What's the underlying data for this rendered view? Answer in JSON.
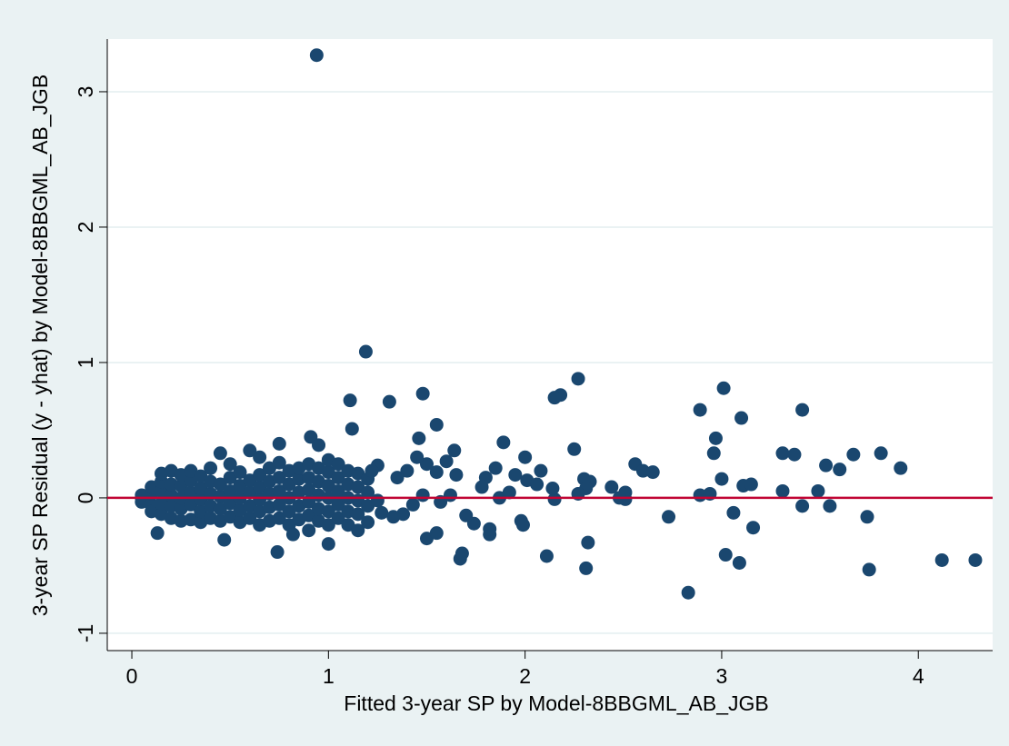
{
  "chart_data": {
    "type": "scatter",
    "xlabel": "Fitted 3-year SP by Model-8BBGML_AB_JGB",
    "ylabel": "3-year SP Residual (y - yhat) by Model-8BBGML_AB_JGB",
    "x": [
      0.05,
      0.05,
      0.05,
      0.1,
      0.1,
      0.1,
      0.1,
      0.15,
      0.15,
      0.15,
      0.15,
      0.15,
      0.2,
      0.2,
      0.2,
      0.2,
      0.2,
      0.25,
      0.25,
      0.25,
      0.25,
      0.25,
      0.3,
      0.3,
      0.3,
      0.3,
      0.3,
      0.35,
      0.35,
      0.35,
      0.35,
      0.35,
      0.4,
      0.4,
      0.4,
      0.4,
      0.4,
      0.45,
      0.45,
      0.45,
      0.45,
      0.45,
      0.5,
      0.5,
      0.5,
      0.5,
      0.5,
      0.55,
      0.55,
      0.55,
      0.55,
      0.55,
      0.6,
      0.6,
      0.6,
      0.6,
      0.6,
      0.65,
      0.65,
      0.65,
      0.65,
      0.65,
      0.65,
      0.7,
      0.7,
      0.7,
      0.7,
      0.7,
      0.75,
      0.75,
      0.75,
      0.75,
      0.75,
      0.8,
      0.8,
      0.8,
      0.8,
      0.8,
      0.85,
      0.85,
      0.85,
      0.85,
      0.85,
      0.9,
      0.9,
      0.9,
      0.9,
      0.9,
      0.95,
      0.95,
      0.95,
      0.95,
      0.95,
      1.0,
      1.0,
      1.0,
      1.0,
      1.0,
      1.0,
      1.05,
      1.05,
      1.05,
      1.05,
      1.05,
      1.1,
      1.1,
      1.1,
      1.1,
      1.1,
      1.15,
      1.15,
      1.15,
      1.15,
      1.2,
      1.2,
      1.2,
      0.94,
      1.19,
      2.27,
      2.18,
      2.15,
      1.48,
      1.11,
      1.31,
      3.01,
      3.41,
      2.89,
      3.1,
      1.12,
      1.55,
      0.91,
      1.46,
      2.97,
      1.89,
      0.95,
      2.25,
      1.64,
      0.75,
      3.81,
      3.67,
      3.37,
      3.31,
      2.96,
      3.91,
      3.53,
      3.6,
      2.56,
      2.6,
      2.65,
      3.0,
      3.11,
      3.15,
      3.31,
      3.49,
      2.89,
      2.94,
      2.51,
      2.51,
      2.44,
      2.33,
      2.3,
      2.31,
      2.27,
      3.41,
      3.55,
      3.06,
      2.73,
      3.16,
      3.74,
      4.12,
      4.29,
      3.75,
      3.02,
      3.09,
      2.83,
      2.31,
      2.32,
      2.11,
      1.67,
      1.68,
      1.82,
      1.82,
      1.98,
      1.99,
      1.74,
      1.7,
      1.5,
      1.55,
      1.27,
      1.0,
      0.74,
      0.47,
      0.13,
      0.82,
      0.9,
      1.15,
      1.2,
      2.15,
      2.14,
      2.0,
      2.08,
      1.95,
      1.85,
      1.8,
      1.78,
      1.65,
      1.6,
      1.55,
      1.5,
      1.45,
      1.4,
      1.35,
      1.62,
      1.57,
      1.48,
      1.43,
      1.38,
      1.33,
      1.25,
      1.25,
      1.22,
      2.48,
      2.01,
      2.06,
      1.87,
      1.92
    ],
    "values": [
      -0.03,
      0,
      0.02,
      -0.05,
      0.03,
      -0.1,
      0.08,
      -0.12,
      -0.04,
      0.05,
      0.12,
      0.18,
      -0.15,
      -0.06,
      0.02,
      0.1,
      0.2,
      -0.17,
      -0.08,
      0,
      0.09,
      0.17,
      -0.16,
      -0.05,
      0.04,
      0.13,
      0.2,
      -0.18,
      -0.1,
      -0.01,
      0.07,
      0.16,
      -0.15,
      -0.06,
      0.03,
      0.12,
      0.22,
      -0.17,
      -0.08,
      0.01,
      0.1,
      0.33,
      -0.14,
      -0.04,
      0.05,
      0.15,
      0.25,
      -0.18,
      -0.09,
      0,
      0.09,
      0.19,
      -0.15,
      -0.06,
      0.04,
      0.13,
      0.35,
      -0.2,
      -0.1,
      -0.01,
      0.08,
      0.17,
      0.3,
      -0.17,
      -0.07,
      0.03,
      0.12,
      0.22,
      -0.15,
      -0.05,
      0.05,
      0.15,
      0.26,
      -0.2,
      -0.1,
      0,
      0.1,
      0.2,
      -0.16,
      -0.06,
      0.04,
      0.14,
      0.22,
      -0.13,
      -0.03,
      0.06,
      0.15,
      0.25,
      -0.17,
      -0.08,
      0.02,
      0.12,
      0.22,
      -0.2,
      -0.1,
      0,
      0.09,
      0.19,
      0.28,
      -0.15,
      -0.05,
      0.05,
      0.15,
      0.25,
      -0.2,
      -0.1,
      0,
      0.1,
      0.2,
      -0.12,
      -0.02,
      0.08,
      0.18,
      -0.06,
      0.04,
      0.14,
      3.27,
      1.08,
      0.88,
      0.76,
      0.74,
      0.77,
      0.72,
      0.71,
      0.81,
      0.65,
      0.65,
      0.59,
      0.51,
      0.54,
      0.45,
      0.44,
      0.44,
      0.41,
      0.39,
      0.36,
      0.35,
      0.4,
      0.33,
      0.32,
      0.32,
      0.33,
      0.33,
      0.22,
      0.24,
      0.21,
      0.25,
      0.2,
      0.19,
      0.14,
      0.09,
      0.1,
      0.05,
      0.05,
      0.02,
      0.03,
      0.04,
      -0.01,
      0.08,
      0.12,
      0.14,
      0.07,
      0.03,
      -0.06,
      -0.06,
      -0.11,
      -0.14,
      -0.22,
      -0.14,
      -0.46,
      -0.46,
      -0.53,
      -0.42,
      -0.48,
      -0.7,
      -0.52,
      -0.33,
      -0.43,
      -0.45,
      -0.41,
      -0.27,
      -0.23,
      -0.17,
      -0.2,
      -0.19,
      -0.13,
      -0.3,
      -0.26,
      -0.11,
      -0.34,
      -0.4,
      -0.31,
      -0.26,
      -0.27,
      -0.24,
      -0.24,
      -0.18,
      -0.01,
      0.07,
      0.3,
      0.2,
      0.17,
      0.22,
      0.15,
      0.08,
      0.17,
      0.27,
      0.19,
      0.25,
      0.3,
      0.2,
      0.15,
      0.02,
      -0.03,
      0.02,
      -0.05,
      -0.12,
      -0.14,
      -0.02,
      0.24,
      0.2,
      0,
      0.13,
      0.1,
      0,
      0.04
    ],
    "color": "#1a476f",
    "xlim": [
      -0.125,
      4.378
    ],
    "ylim": [
      -1.128,
      3.389
    ],
    "xticks": [
      0,
      1,
      2,
      3,
      4
    ],
    "yticks": [
      -1,
      0,
      1,
      2,
      3
    ],
    "grid": true,
    "hline": {
      "value": 0,
      "color": "#c10534"
    }
  }
}
